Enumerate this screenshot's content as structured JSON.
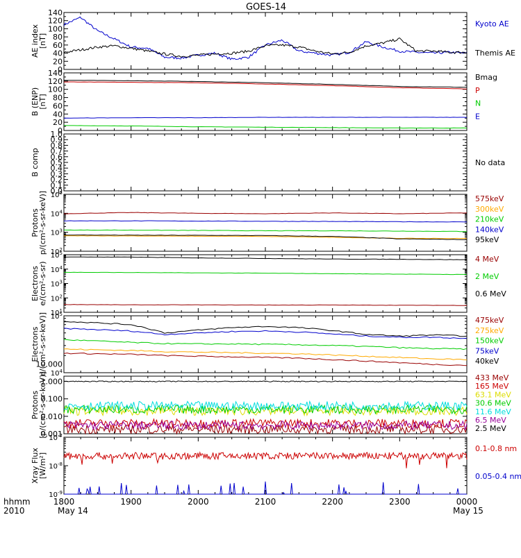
{
  "title": "GOES-14",
  "time_axis": {
    "corner_top": "hhmm",
    "corner_bottom": "2010",
    "ticks": [
      "1800",
      "1900",
      "2000",
      "2100",
      "2200",
      "2300",
      "0000"
    ],
    "start_date": "May 14",
    "end_date": "May 15"
  },
  "colors": {
    "black": "#000000",
    "blue": "#0000cc",
    "red": "#cc0000",
    "green": "#00cc00",
    "orange": "#ffaa00",
    "lightblue": "#00aaff",
    "darkred": "#990000",
    "yellow": "#dddd00",
    "cyan": "#00dddd",
    "purple": "#990099"
  },
  "chart_data": [
    {
      "type": "line",
      "ylabel": [
        "AE index",
        "[nT]"
      ],
      "ylim": [
        0,
        140
      ],
      "yticks": [
        "0",
        "20",
        "40",
        "60",
        "80",
        "100",
        "120",
        "140"
      ],
      "x_hours": [
        18.0,
        18.25,
        18.5,
        18.75,
        19.0,
        19.25,
        19.5,
        19.75,
        20.0,
        20.25,
        20.5,
        20.75,
        21.0,
        21.25,
        21.5,
        21.75,
        22.0,
        22.25,
        22.5,
        22.75,
        23.0,
        23.25,
        23.5,
        23.75,
        24.0
      ],
      "series": [
        {
          "name": "Kyoto AE",
          "color": "blue",
          "values": [
            110,
            128,
            95,
            75,
            55,
            52,
            30,
            28,
            35,
            40,
            25,
            30,
            60,
            72,
            45,
            40,
            35,
            42,
            68,
            55,
            45,
            42,
            40,
            42,
            40
          ]
        },
        {
          "name": "Themis AE",
          "color": "black",
          "values": [
            42,
            48,
            55,
            58,
            52,
            45,
            38,
            32,
            35,
            38,
            40,
            45,
            58,
            60,
            55,
            45,
            38,
            42,
            58,
            65,
            75,
            45,
            45,
            42,
            42
          ]
        }
      ]
    },
    {
      "type": "line",
      "ylabel": [
        "B (ENP)",
        "[nT]"
      ],
      "ylim": [
        0,
        140
      ],
      "yticks": [
        "0",
        "20",
        "40",
        "60",
        "80",
        "100",
        "120",
        "140"
      ],
      "x_hours": [
        18,
        19,
        20,
        21,
        22,
        23,
        24
      ],
      "series": [
        {
          "name": "Bmag",
          "color": "black",
          "values": [
            122,
            121,
            119,
            116,
            112,
            107,
            105
          ]
        },
        {
          "name": "P",
          "color": "red",
          "values": [
            118,
            117,
            116,
            113,
            109,
            104,
            101
          ]
        },
        {
          "name": "N",
          "color": "green",
          "values": [
            12,
            11,
            9,
            8,
            7,
            6,
            6
          ]
        },
        {
          "name": "E",
          "color": "blue",
          "values": [
            30,
            31,
            31,
            32,
            32,
            32,
            32
          ]
        }
      ]
    },
    {
      "type": "line",
      "ylabel": [
        "B comp"
      ],
      "ylim": [
        0,
        1
      ],
      "yticks": [
        "0.0",
        "0.1",
        "0.2",
        "0.3",
        "0.4",
        "0.5",
        "0.6",
        "0.7",
        "0.8",
        "0.9",
        "1.0"
      ],
      "note": "No data",
      "series": []
    },
    {
      "type": "line",
      "log": true,
      "ylabel": [
        "Protons",
        "p/(cm²-s-sr-keV)]"
      ],
      "ylog_range": [
        2,
        5
      ],
      "yticks_log": [
        2,
        3,
        4,
        5
      ],
      "x_hours": [
        18,
        19,
        20,
        21,
        22,
        23,
        24
      ],
      "series": [
        {
          "name": "575keV",
          "color": "darkred",
          "values": [
            9500,
            11000,
            10000,
            9500,
            10500,
            9500,
            10500
          ]
        },
        {
          "name": "300keV",
          "color": "orange",
          "values": [
            650,
            640,
            620,
            600,
            540,
            480,
            470
          ]
        },
        {
          "name": "210keV",
          "color": "green",
          "values": [
            1300,
            1300,
            1250,
            1200,
            1200,
            1150,
            1100
          ]
        },
        {
          "name": "140keV",
          "color": "blue",
          "values": [
            4000,
            4000,
            3900,
            3800,
            3700,
            3600,
            3500
          ]
        },
        {
          "name": "95keV",
          "color": "black",
          "values": [
            720,
            700,
            690,
            670,
            600,
            450,
            410
          ]
        }
      ]
    },
    {
      "type": "line",
      "log": true,
      "ylabel": [
        "Electrons",
        "e/(cm²-s-sr)"
      ],
      "ylog_range": [
        1,
        5
      ],
      "yticks_log": [
        1,
        2,
        3,
        4,
        5
      ],
      "x_hours": [
        18,
        19,
        20,
        21,
        22,
        23,
        24
      ],
      "series": [
        {
          "name": "4 MeV",
          "color": "darkred",
          "values": [
            35,
            33,
            33,
            32,
            32,
            31,
            30
          ]
        },
        {
          "name": "2 MeV",
          "color": "green",
          "values": [
            6000,
            5800,
            5500,
            5200,
            4800,
            4500,
            4200
          ]
        },
        {
          "name": "0.6 MeV",
          "color": "black",
          "values": [
            70000,
            68000,
            60000,
            55000,
            50000,
            48000,
            45000
          ]
        }
      ]
    },
    {
      "type": "line",
      "log": true,
      "ylabel": [
        "Electrons",
        "e/(cm²-s-sr-keV)]"
      ],
      "ylog_range": [
        4,
        5
      ],
      "yticks_log": [
        4,
        5
      ],
      "x_hours": [
        18,
        19,
        19.5,
        20,
        20.5,
        21,
        21.5,
        22,
        22.5,
        23,
        23.5,
        24
      ],
      "series": [
        {
          "name": "475keV",
          "color": "darkred",
          "values": [
            22000,
            21000,
            20000,
            19500,
            19000,
            18500,
            18000,
            17000,
            16000,
            15000,
            14000,
            13500
          ]
        },
        {
          "name": "275keV",
          "color": "orange",
          "values": [
            26000,
            24500,
            23500,
            23000,
            22500,
            22000,
            21500,
            20500,
            19500,
            18500,
            17500,
            17000
          ]
        },
        {
          "name": "150keV",
          "color": "green",
          "values": [
            38000,
            34000,
            32500,
            32000,
            32000,
            31500,
            31000,
            30000,
            29000,
            27500,
            26500,
            26000
          ]
        },
        {
          "name": "75keV",
          "color": "blue",
          "values": [
            60000,
            54000,
            47000,
            50000,
            53000,
            54000,
            52000,
            48000,
            44000,
            42000,
            42000,
            40000
          ]
        },
        {
          "name": "40keV",
          "color": "black",
          "values": [
            80000,
            70000,
            50000,
            56000,
            62000,
            65000,
            62000,
            55000,
            47000,
            44000,
            46000,
            44000
          ]
        }
      ]
    },
    {
      "type": "line",
      "log": true,
      "ylabel": [
        "Protons",
        "[p/(cm²-s-sr-keV)]"
      ],
      "ylog_range": [
        -3,
        0.3
      ],
      "ytick_labels": [
        {
          "label": "0.001",
          "log": -3
        },
        {
          "label": "0.010",
          "log": -2
        },
        {
          "label": "0.100",
          "log": -1
        },
        {
          "label": "1.000",
          "log": 0
        }
      ],
      "x_hours": [
        18,
        24
      ],
      "series": [
        {
          "name": "433 MeV",
          "color": "darkred",
          "values": [
            0.0018,
            0.0018
          ]
        },
        {
          "name": "165 MeV",
          "color": "red",
          "values": [
            0.004,
            0.004
          ]
        },
        {
          "name": "63.1 MeV",
          "color": "yellow",
          "values": [
            0.02,
            0.02
          ]
        },
        {
          "name": "30.6 MeV",
          "color": "green",
          "values": [
            0.025,
            0.025
          ]
        },
        {
          "name": "11.6 MeV",
          "color": "cyan",
          "values": [
            0.04,
            0.04
          ]
        },
        {
          "name": "6.5 MeV",
          "color": "purple",
          "values": [
            0.003,
            0.003
          ]
        },
        {
          "name": "2.5 MeV",
          "color": "black",
          "values": [
            1.0,
            0.9
          ]
        }
      ]
    },
    {
      "type": "line",
      "log": true,
      "ylabel": [
        "Xray Flux",
        "[W/m²]"
      ],
      "ylog_range": [
        -9,
        -7
      ],
      "yticks_log": [
        -9,
        -8,
        -7
      ],
      "x_hours": [
        18,
        24
      ],
      "series": [
        {
          "name": "0.1-0.8 nm",
          "color": "red",
          "values": [
            2.2e-08,
            2.2e-08
          ]
        },
        {
          "name": "0.05-0.4 nm",
          "color": "blue",
          "values": [
            1e-09,
            1e-09
          ]
        }
      ]
    }
  ]
}
